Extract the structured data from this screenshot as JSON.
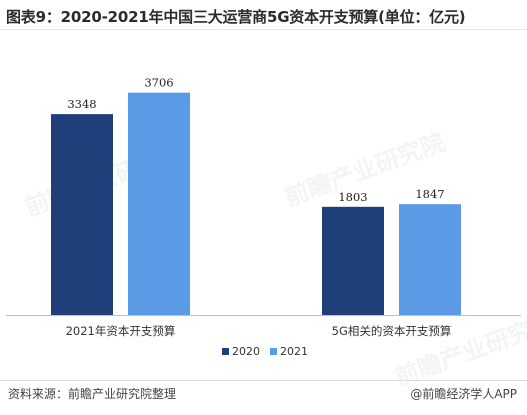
{
  "title": "图表9：2020-2021年中国三大运营商5G资本开支预算(单位：亿元)",
  "source": "资料来源：前瞻产业研究院整理",
  "brand": "@前瞻经济学人APP",
  "watermark": "前瞻产业研究院",
  "colors": {
    "2020": "#1f3f7a",
    "2021": "#5b9be6"
  },
  "chart_data": {
    "type": "bar",
    "categories": [
      "2021年资本开支预算",
      "5G相关的资本开支预算"
    ],
    "series": [
      {
        "name": "2020",
        "values": [
          3348,
          1803
        ]
      },
      {
        "name": "2021",
        "values": [
          3706,
          1847
        ]
      }
    ],
    "ylim": [
      0,
      4000
    ],
    "grid": false,
    "legend": "bottom-center",
    "title": "图表9：2020-2021年中国三大运营商5G资本开支预算(单位：亿元)",
    "xlabel": "",
    "ylabel": ""
  }
}
